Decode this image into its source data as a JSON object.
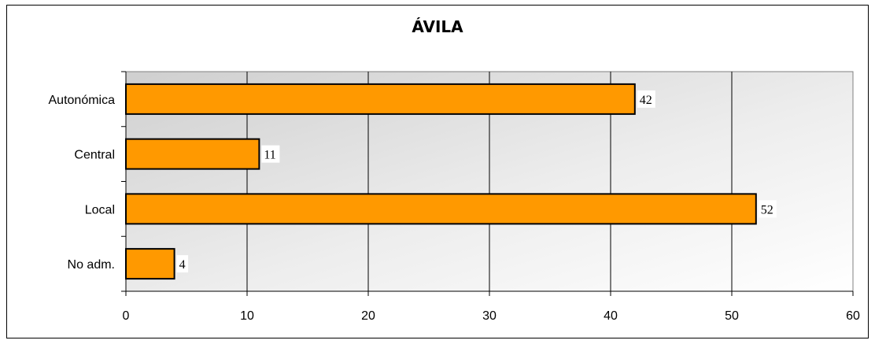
{
  "chart_data": {
    "type": "bar",
    "orientation": "horizontal",
    "title": "ÁVILA",
    "categories": [
      "Autonómica",
      "Central",
      "Local",
      "No adm."
    ],
    "values": [
      42,
      11,
      52,
      4
    ],
    "data_labels": [
      "42",
      "11",
      "52",
      "4"
    ],
    "xlim": [
      0,
      60
    ],
    "x_ticks": [
      "0",
      "10",
      "20",
      "30",
      "40",
      "50",
      "60"
    ],
    "xlabel": "",
    "ylabel": "",
    "grid": "vertical",
    "legend": "none",
    "bar_color": "#FF9900",
    "plot_background": "#DCDCDC"
  }
}
